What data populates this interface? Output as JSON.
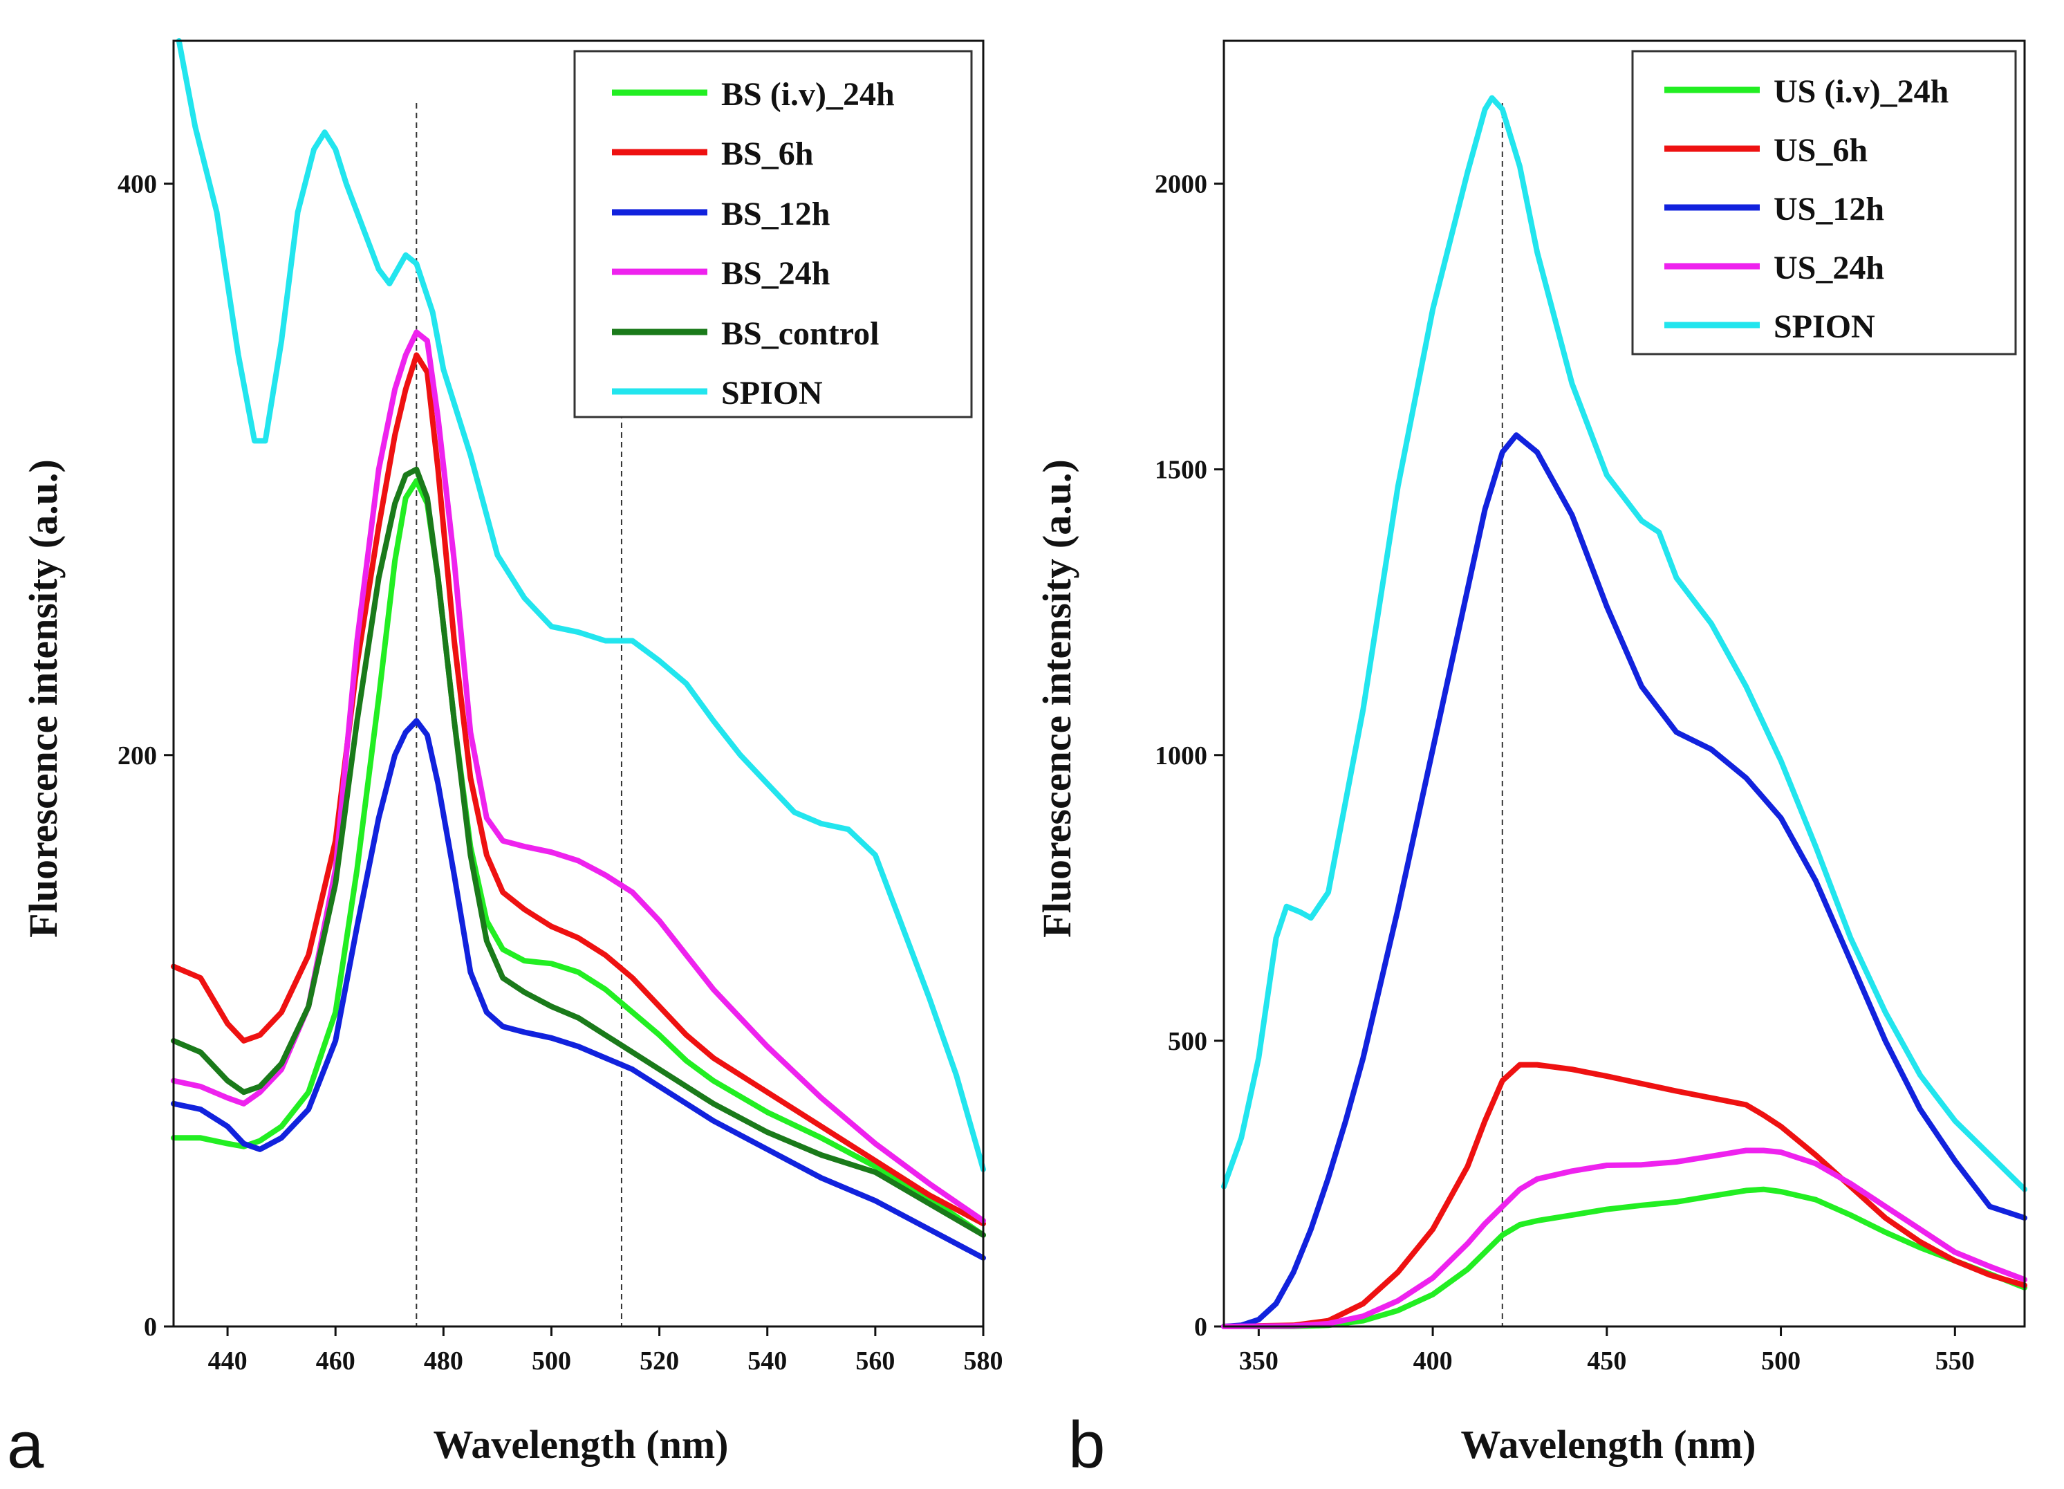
{
  "chart_data": [
    {
      "type": "line",
      "panel_label": "a",
      "xlabel": "Wavelength (nm)",
      "ylabel": "Fluorescence intensity (a.u.)",
      "xlim": [
        430,
        580
      ],
      "ylim": [
        0,
        450
      ],
      "xticks": [
        440,
        460,
        480,
        500,
        520,
        540,
        560,
        580
      ],
      "yticks": [
        0,
        200,
        400
      ],
      "reference_lines_x": [
        475,
        513
      ],
      "legend_position": "top-right",
      "series": [
        {
          "name": "BS (i.v)_24h",
          "color": "#22ee22",
          "x": [
            430,
            435,
            440,
            443,
            446,
            450,
            455,
            460,
            464,
            468,
            471,
            473,
            475,
            477,
            479,
            482,
            485,
            488,
            491,
            495,
            500,
            505,
            510,
            515,
            520,
            525,
            530,
            540,
            550,
            560,
            570,
            580
          ],
          "y": [
            66,
            66,
            64,
            63,
            65,
            70,
            82,
            110,
            160,
            220,
            268,
            290,
            296,
            288,
            262,
            212,
            168,
            142,
            132,
            128,
            127,
            124,
            118,
            110,
            102,
            93,
            86,
            75,
            66,
            56,
            45,
            32
          ]
        },
        {
          "name": "BS_6h",
          "color": "#ee1111",
          "x": [
            430,
            435,
            440,
            443,
            446,
            450,
            455,
            460,
            464,
            468,
            471,
            473,
            475,
            477,
            479,
            482,
            485,
            488,
            491,
            495,
            500,
            505,
            510,
            515,
            520,
            525,
            530,
            540,
            550,
            560,
            570,
            580
          ],
          "y": [
            126,
            122,
            106,
            100,
            102,
            110,
            130,
            170,
            232,
            280,
            312,
            328,
            340,
            334,
            300,
            240,
            192,
            165,
            152,
            146,
            140,
            136,
            130,
            122,
            112,
            102,
            94,
            82,
            70,
            58,
            46,
            36
          ]
        },
        {
          "name": "BS_12h",
          "color": "#1122dd",
          "x": [
            430,
            435,
            440,
            443,
            446,
            450,
            455,
            460,
            464,
            468,
            471,
            473,
            475,
            477,
            479,
            482,
            485,
            488,
            491,
            495,
            500,
            505,
            510,
            515,
            520,
            525,
            530,
            540,
            550,
            560,
            570,
            580
          ],
          "y": [
            78,
            76,
            70,
            64,
            62,
            66,
            76,
            100,
            140,
            178,
            200,
            208,
            212,
            207,
            190,
            158,
            124,
            110,
            105,
            103,
            101,
            98,
            94,
            90,
            84,
            78,
            72,
            62,
            52,
            44,
            34,
            24
          ]
        },
        {
          "name": "BS_24h",
          "color": "#ee22ee",
          "x": [
            430,
            435,
            440,
            443,
            446,
            450,
            455,
            460,
            464,
            468,
            471,
            473,
            475,
            477,
            479,
            482,
            485,
            488,
            491,
            495,
            500,
            505,
            510,
            515,
            520,
            525,
            530,
            540,
            550,
            560,
            570,
            580
          ],
          "y": [
            86,
            84,
            80,
            78,
            82,
            90,
            112,
            160,
            240,
            300,
            328,
            340,
            348,
            345,
            318,
            268,
            208,
            178,
            170,
            168,
            166,
            163,
            158,
            152,
            142,
            130,
            118,
            98,
            80,
            64,
            50,
            37
          ]
        },
        {
          "name": "BS_control",
          "color": "#1a7a1a",
          "x": [
            430,
            435,
            440,
            443,
            446,
            450,
            455,
            460,
            464,
            468,
            471,
            473,
            475,
            477,
            479,
            482,
            485,
            488,
            491,
            495,
            500,
            505,
            510,
            515,
            520,
            525,
            530,
            540,
            550,
            560,
            570,
            580
          ],
          "y": [
            100,
            96,
            86,
            82,
            84,
            92,
            112,
            155,
            212,
            262,
            288,
            298,
            300,
            290,
            262,
            212,
            165,
            135,
            122,
            117,
            112,
            108,
            102,
            96,
            90,
            84,
            78,
            68,
            60,
            54,
            43,
            32
          ]
        },
        {
          "name": "SPION",
          "color": "#22e5ee",
          "x": [
            431,
            434,
            438,
            442,
            445,
            447,
            450,
            453,
            456,
            458,
            460,
            462,
            465,
            468,
            470,
            473,
            475,
            478,
            480,
            485,
            490,
            495,
            500,
            505,
            510,
            515,
            520,
            525,
            530,
            535,
            540,
            545,
            550,
            555,
            560,
            565,
            570,
            575,
            580
          ],
          "y": [
            460,
            420,
            390,
            340,
            310,
            310,
            345,
            390,
            412,
            418,
            412,
            400,
            385,
            370,
            365,
            375,
            372,
            355,
            335,
            305,
            270,
            255,
            245,
            243,
            240,
            240,
            233,
            225,
            212,
            200,
            190,
            180,
            176,
            174,
            165,
            140,
            115,
            88,
            55
          ]
        }
      ]
    },
    {
      "type": "line",
      "panel_label": "b",
      "xlabel": "Wavelength (nm)",
      "ylabel": "Fluorescence intensity (a.u.)",
      "xlim": [
        340,
        570
      ],
      "ylim": [
        0,
        2250
      ],
      "xticks": [
        350,
        400,
        450,
        500,
        550
      ],
      "yticks": [
        0,
        500,
        1000,
        1500,
        2000
      ],
      "reference_lines_x": [
        420
      ],
      "legend_position": "top-right",
      "series": [
        {
          "name": "US (i.v)_24h",
          "color": "#22ee22",
          "x": [
            340,
            360,
            370,
            380,
            390,
            400,
            410,
            415,
            420,
            425,
            430,
            440,
            450,
            460,
            470,
            480,
            490,
            495,
            500,
            510,
            520,
            530,
            540,
            550,
            560,
            570
          ],
          "y": [
            0,
            0,
            2,
            10,
            28,
            56,
            100,
            130,
            160,
            178,
            185,
            195,
            205,
            212,
            218,
            228,
            238,
            240,
            236,
            222,
            195,
            165,
            138,
            115,
            92,
            68
          ]
        },
        {
          "name": "US_6h",
          "color": "#ee1111",
          "x": [
            340,
            360,
            370,
            380,
            390,
            400,
            410,
            415,
            420,
            425,
            430,
            440,
            450,
            460,
            470,
            480,
            490,
            495,
            500,
            510,
            520,
            530,
            540,
            550,
            560,
            570
          ],
          "y": [
            0,
            2,
            10,
            40,
            95,
            170,
            280,
            360,
            430,
            458,
            458,
            450,
            438,
            425,
            412,
            400,
            388,
            370,
            350,
            300,
            245,
            190,
            148,
            115,
            90,
            72
          ]
        },
        {
          "name": "US_12h",
          "color": "#1122dd",
          "x": [
            340,
            345,
            350,
            355,
            360,
            365,
            370,
            375,
            380,
            390,
            400,
            410,
            415,
            420,
            424,
            430,
            440,
            450,
            460,
            470,
            480,
            490,
            500,
            510,
            520,
            530,
            540,
            550,
            560,
            570
          ],
          "y": [
            0,
            2,
            12,
            40,
            95,
            170,
            260,
            360,
            470,
            730,
            1010,
            1290,
            1430,
            1530,
            1560,
            1530,
            1420,
            1260,
            1120,
            1040,
            1010,
            960,
            890,
            780,
            640,
            500,
            380,
            290,
            210,
            190
          ]
        },
        {
          "name": "US_24h",
          "color": "#ee22ee",
          "x": [
            340,
            360,
            370,
            380,
            390,
            400,
            410,
            415,
            420,
            425,
            430,
            440,
            450,
            460,
            470,
            480,
            490,
            495,
            500,
            510,
            520,
            530,
            540,
            550,
            560,
            570
          ],
          "y": [
            0,
            1,
            5,
            18,
            45,
            85,
            145,
            180,
            210,
            240,
            258,
            272,
            282,
            283,
            288,
            298,
            308,
            308,
            305,
            285,
            250,
            210,
            170,
            130,
            105,
            82
          ]
        },
        {
          "name": "SPION",
          "color": "#22e5ee",
          "x": [
            340,
            345,
            350,
            355,
            358,
            362,
            365,
            370,
            380,
            390,
            400,
            410,
            415,
            417,
            420,
            425,
            430,
            440,
            450,
            460,
            465,
            470,
            480,
            490,
            500,
            510,
            520,
            530,
            540,
            550,
            560,
            570
          ],
          "y": [
            245,
            330,
            470,
            680,
            735,
            725,
            715,
            760,
            1080,
            1470,
            1780,
            2020,
            2130,
            2150,
            2130,
            2030,
            1880,
            1650,
            1490,
            1410,
            1390,
            1310,
            1230,
            1120,
            990,
            840,
            680,
            550,
            440,
            360,
            300,
            240
          ]
        }
      ]
    }
  ]
}
